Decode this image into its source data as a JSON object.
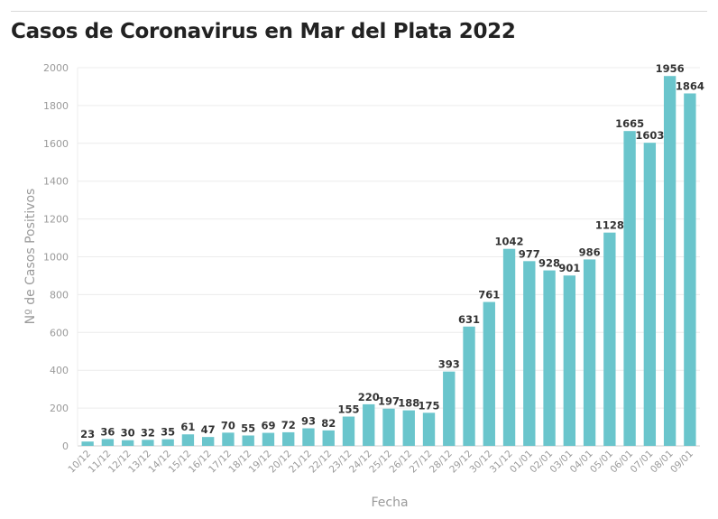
{
  "chart_data": {
    "type": "bar",
    "title": "Casos de Coronavirus en Mar del Plata 2022",
    "xlabel": "Fecha",
    "ylabel": "Nº de Casos Positivos",
    "ylim": [
      0,
      2000
    ],
    "yticks": [
      0,
      200,
      400,
      600,
      800,
      1000,
      1200,
      1400,
      1600,
      1800,
      2000
    ],
    "grid": true,
    "bar_color": "#6ac5cc",
    "categories": [
      "10/12",
      "11/12",
      "12/12",
      "13/12",
      "14/12",
      "15/12",
      "16/12",
      "17/12",
      "18/12",
      "19/12",
      "20/12",
      "21/12",
      "22/12",
      "23/12",
      "24/12",
      "25/12",
      "26/12",
      "27/12",
      "28/12",
      "29/12",
      "30/12",
      "31/12",
      "01/01",
      "02/01",
      "03/01",
      "04/01",
      "05/01",
      "06/01",
      "07/01",
      "08/01",
      "09/01"
    ],
    "values": [
      23,
      36,
      30,
      32,
      35,
      61,
      47,
      70,
      55,
      69,
      72,
      93,
      82,
      155,
      220,
      197,
      188,
      175,
      393,
      631,
      761,
      1042,
      977,
      928,
      901,
      986,
      1128,
      1665,
      1603,
      1956,
      1864
    ]
  }
}
